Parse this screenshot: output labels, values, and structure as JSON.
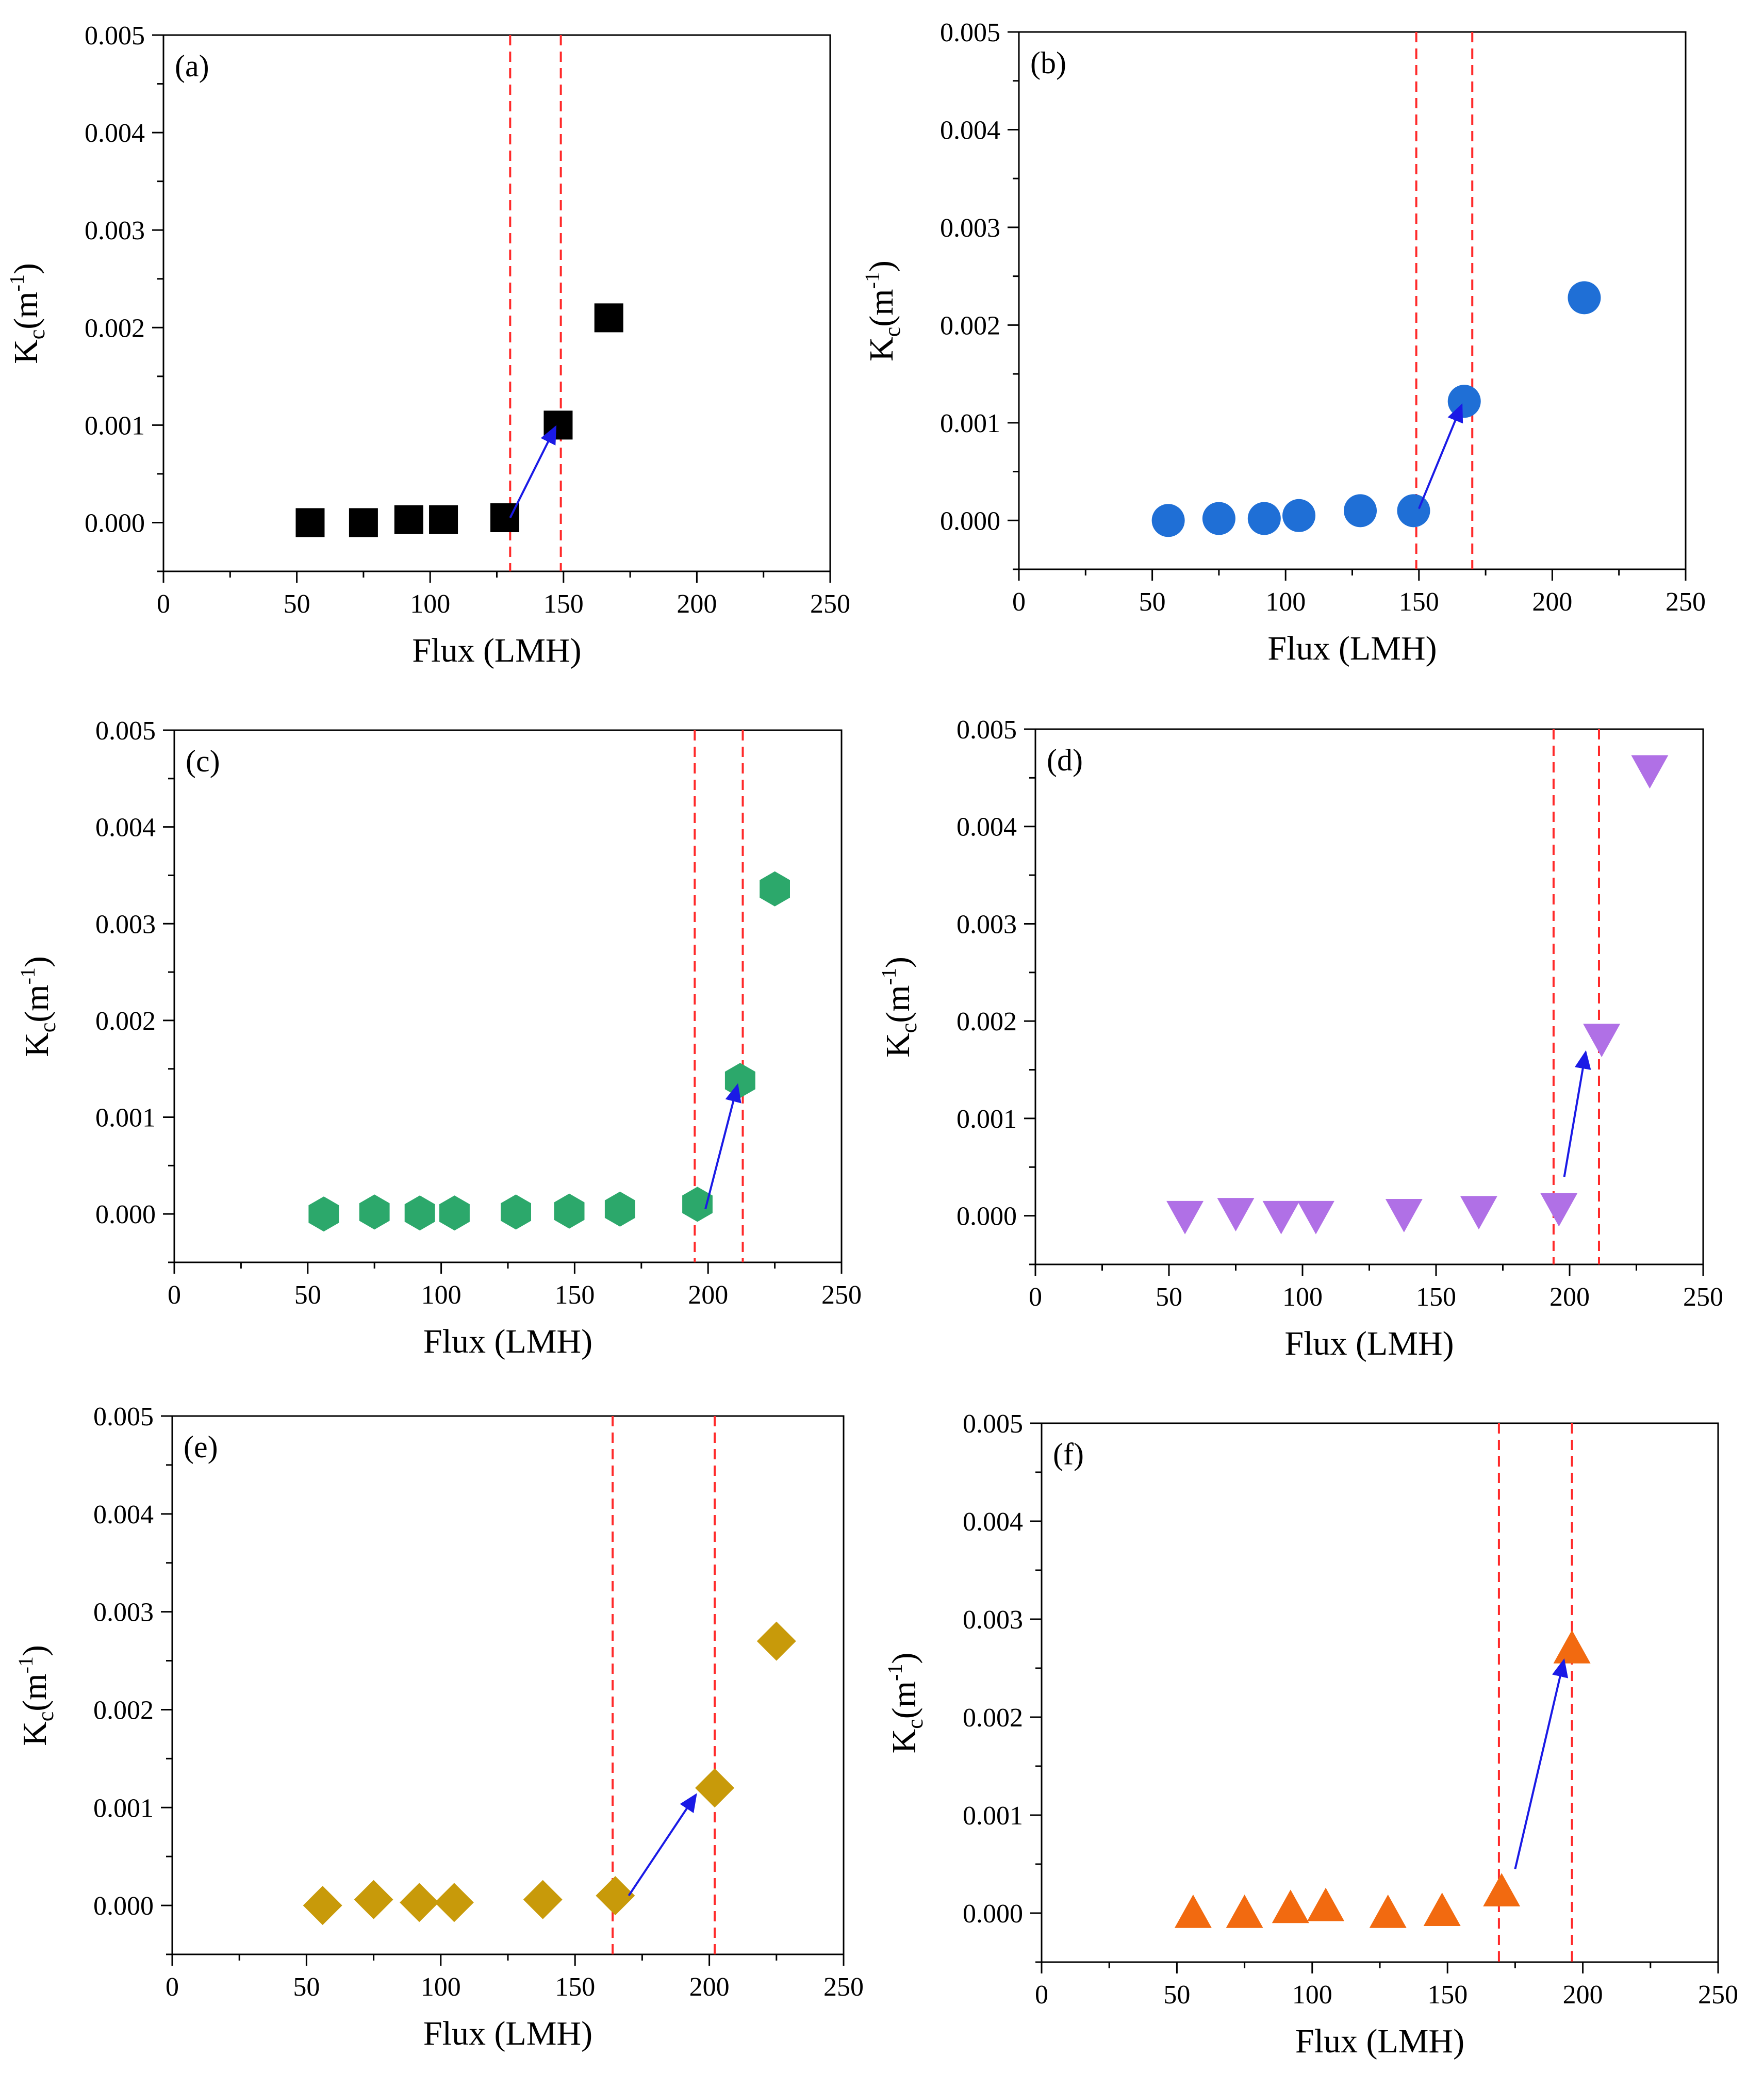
{
  "figure": {
    "marker_colors": {
      "black": "#000000",
      "blue": "#1f6fd6",
      "green": "#2ca86b",
      "purple": "#b070e6",
      "gold": "#c89a0a",
      "orange": "#f26a10"
    },
    "line_color": "#ff2a2a",
    "arrow_color": "#1a1ae6"
  },
  "chart_data": [
    {
      "panel": "(a)",
      "type": "scatter",
      "marker": "square",
      "color": "#000000",
      "xlabel": "Flux (LMH)",
      "ylabel_main": "K",
      "ylabel_sub": "c",
      "ylabel_unit": "(m",
      "ylabel_sup": "-1",
      "ylabel_close": ")",
      "xlim": [
        0,
        250
      ],
      "ylim": [
        -0.0005,
        0.005
      ],
      "xticks": [
        "0",
        "50",
        "100",
        "150",
        "200",
        "250"
      ],
      "yticks": [
        "0.000",
        "0.001",
        "0.002",
        "0.003",
        "0.004",
        "0.005"
      ],
      "x": [
        55,
        75,
        92,
        105,
        128,
        148,
        167
      ],
      "y": [
        0.0,
        0.0,
        3e-05,
        3e-05,
        5e-05,
        0.001,
        0.0021
      ],
      "vlines": [
        130,
        149
      ],
      "arrow": {
        "from": [
          130,
          5e-05
        ],
        "to": [
          147,
          0.00098
        ]
      }
    },
    {
      "panel": "(b)",
      "type": "scatter",
      "marker": "circle",
      "color": "#1f6fd6",
      "xlabel": "Flux (LMH)",
      "ylabel_main": "K",
      "ylabel_sub": "c",
      "ylabel_unit": "(m",
      "ylabel_sup": "-1",
      "ylabel_close": ")",
      "xlim": [
        0,
        250
      ],
      "ylim": [
        -0.0005,
        0.005
      ],
      "xticks": [
        "0",
        "50",
        "100",
        "150",
        "200",
        "250"
      ],
      "yticks": [
        "0.000",
        "0.001",
        "0.002",
        "0.003",
        "0.004",
        "0.005"
      ],
      "x": [
        56,
        75,
        92,
        105,
        128,
        148,
        167,
        212
      ],
      "y": [
        0.0,
        2e-05,
        2e-05,
        5e-05,
        0.0001,
        0.0001,
        0.00122,
        0.00228
      ],
      "vlines": [
        149,
        170
      ],
      "arrow": {
        "from": [
          150,
          0.00012
        ],
        "to": [
          166,
          0.00118
        ]
      }
    },
    {
      "panel": "(c)",
      "type": "scatter",
      "marker": "hexagon",
      "color": "#2ca86b",
      "xlabel": "Flux (LMH)",
      "ylabel_main": "K",
      "ylabel_sub": "c",
      "ylabel_unit": "(m",
      "ylabel_sup": "-1",
      "ylabel_close": ")",
      "xlim": [
        0,
        250
      ],
      "ylim": [
        -0.0005,
        0.005
      ],
      "xticks": [
        "0",
        "50",
        "100",
        "150",
        "200",
        "250"
      ],
      "yticks": [
        "0.000",
        "0.001",
        "0.002",
        "0.003",
        "0.004",
        "0.005"
      ],
      "x": [
        56,
        75,
        92,
        105,
        128,
        148,
        167,
        196,
        212,
        225
      ],
      "y": [
        0.0,
        2e-05,
        1e-05,
        1e-05,
        2e-05,
        3e-05,
        5e-05,
        0.0001,
        0.00138,
        0.00336
      ],
      "vlines": [
        195,
        213
      ],
      "arrow": {
        "from": [
          199,
          5e-05
        ],
        "to": [
          211,
          0.00133
        ]
      }
    },
    {
      "panel": "(d)",
      "type": "scatter",
      "marker": "triangle-down",
      "color": "#b070e6",
      "xlabel": "Flux (LMH)",
      "ylabel_main": "K",
      "ylabel_sub": "c",
      "ylabel_unit": "(m",
      "ylabel_sup": "-1",
      "ylabel_close": ")",
      "xlim": [
        0,
        250
      ],
      "ylim": [
        -0.0005,
        0.005
      ],
      "xticks": [
        "0",
        "50",
        "100",
        "150",
        "200",
        "250"
      ],
      "yticks": [
        "0.000",
        "0.001",
        "0.002",
        "0.003",
        "0.004",
        "0.005"
      ],
      "x": [
        56,
        75,
        92,
        105,
        138,
        166,
        196,
        212,
        230
      ],
      "y": [
        0.0,
        3e-05,
        0.0,
        0.0,
        2e-05,
        5e-05,
        8e-05,
        0.00182,
        0.00458
      ],
      "vlines": [
        194,
        211
      ],
      "arrow": {
        "from": [
          198,
          0.0004
        ],
        "to": [
          206,
          0.00168
        ]
      }
    },
    {
      "panel": "(e)",
      "type": "scatter",
      "marker": "diamond",
      "color": "#c89a0a",
      "xlabel": "Flux (LMH)",
      "ylabel_main": "K",
      "ylabel_sub": "c",
      "ylabel_unit": "(m",
      "ylabel_sup": "-1",
      "ylabel_close": ")",
      "xlim": [
        0,
        250
      ],
      "ylim": [
        -0.0005,
        0.005
      ],
      "xticks": [
        "0",
        "50",
        "100",
        "150",
        "200",
        "250"
      ],
      "yticks": [
        "0.000",
        "0.001",
        "0.002",
        "0.003",
        "0.004",
        "0.005"
      ],
      "x": [
        56,
        75,
        92,
        105,
        138,
        165,
        202,
        225
      ],
      "y": [
        0.0,
        6e-05,
        3e-05,
        3e-05,
        6e-05,
        0.0001,
        0.0012,
        0.0027
      ],
      "vlines": [
        164,
        202
      ],
      "arrow": {
        "from": [
          170,
          0.0001
        ],
        "to": [
          195,
          0.00113
        ]
      }
    },
    {
      "panel": "(f)",
      "type": "scatter",
      "marker": "triangle-up",
      "color": "#f26a10",
      "xlabel": "Flux (LMH)",
      "ylabel_main": "K",
      "ylabel_sub": "c",
      "ylabel_unit": "(m",
      "ylabel_sup": "-1",
      "ylabel_close": ")",
      "xlim": [
        0,
        250
      ],
      "ylim": [
        -0.0005,
        0.005
      ],
      "xticks": [
        "0",
        "50",
        "100",
        "150",
        "200",
        "250"
      ],
      "yticks": [
        "0.000",
        "0.001",
        "0.002",
        "0.003",
        "0.004",
        "0.005"
      ],
      "x": [
        56,
        75,
        92,
        105,
        128,
        148,
        170,
        196
      ],
      "y": [
        0.0,
        0.0,
        5e-05,
        7e-05,
        0.0,
        2e-05,
        0.00022,
        0.0027
      ],
      "vlines": [
        169,
        196
      ],
      "arrow": {
        "from": [
          175,
          0.00045
        ],
        "to": [
          193,
          0.00258
        ]
      }
    }
  ]
}
